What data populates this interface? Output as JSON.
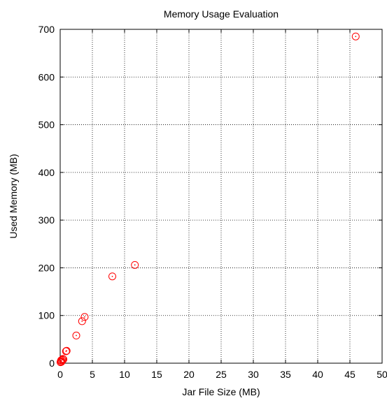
{
  "chart_data": {
    "type": "scatter",
    "title": "Memory Usage Evaluation",
    "xlabel": "Jar File Size (MB)",
    "ylabel": "Used Memory (MB)",
    "xlim": [
      0,
      50
    ],
    "ylim": [
      0,
      700
    ],
    "xticks": [
      0,
      5,
      10,
      15,
      20,
      25,
      30,
      35,
      40,
      45,
      50
    ],
    "yticks": [
      0,
      100,
      200,
      300,
      400,
      500,
      600,
      700
    ],
    "grid": true,
    "marker": "circle-dot",
    "series_color": "#ff0000",
    "points": [
      {
        "x": 0.05,
        "y": 2
      },
      {
        "x": 0.1,
        "y": 4
      },
      {
        "x": 0.15,
        "y": 6
      },
      {
        "x": 0.2,
        "y": 3
      },
      {
        "x": 0.3,
        "y": 7
      },
      {
        "x": 0.4,
        "y": 9
      },
      {
        "x": 0.5,
        "y": 8
      },
      {
        "x": 0.9,
        "y": 25
      },
      {
        "x": 1.0,
        "y": 26
      },
      {
        "x": 2.5,
        "y": 58
      },
      {
        "x": 3.4,
        "y": 88
      },
      {
        "x": 3.8,
        "y": 97
      },
      {
        "x": 8.1,
        "y": 182
      },
      {
        "x": 11.6,
        "y": 206
      },
      {
        "x": 45.9,
        "y": 685
      }
    ]
  }
}
